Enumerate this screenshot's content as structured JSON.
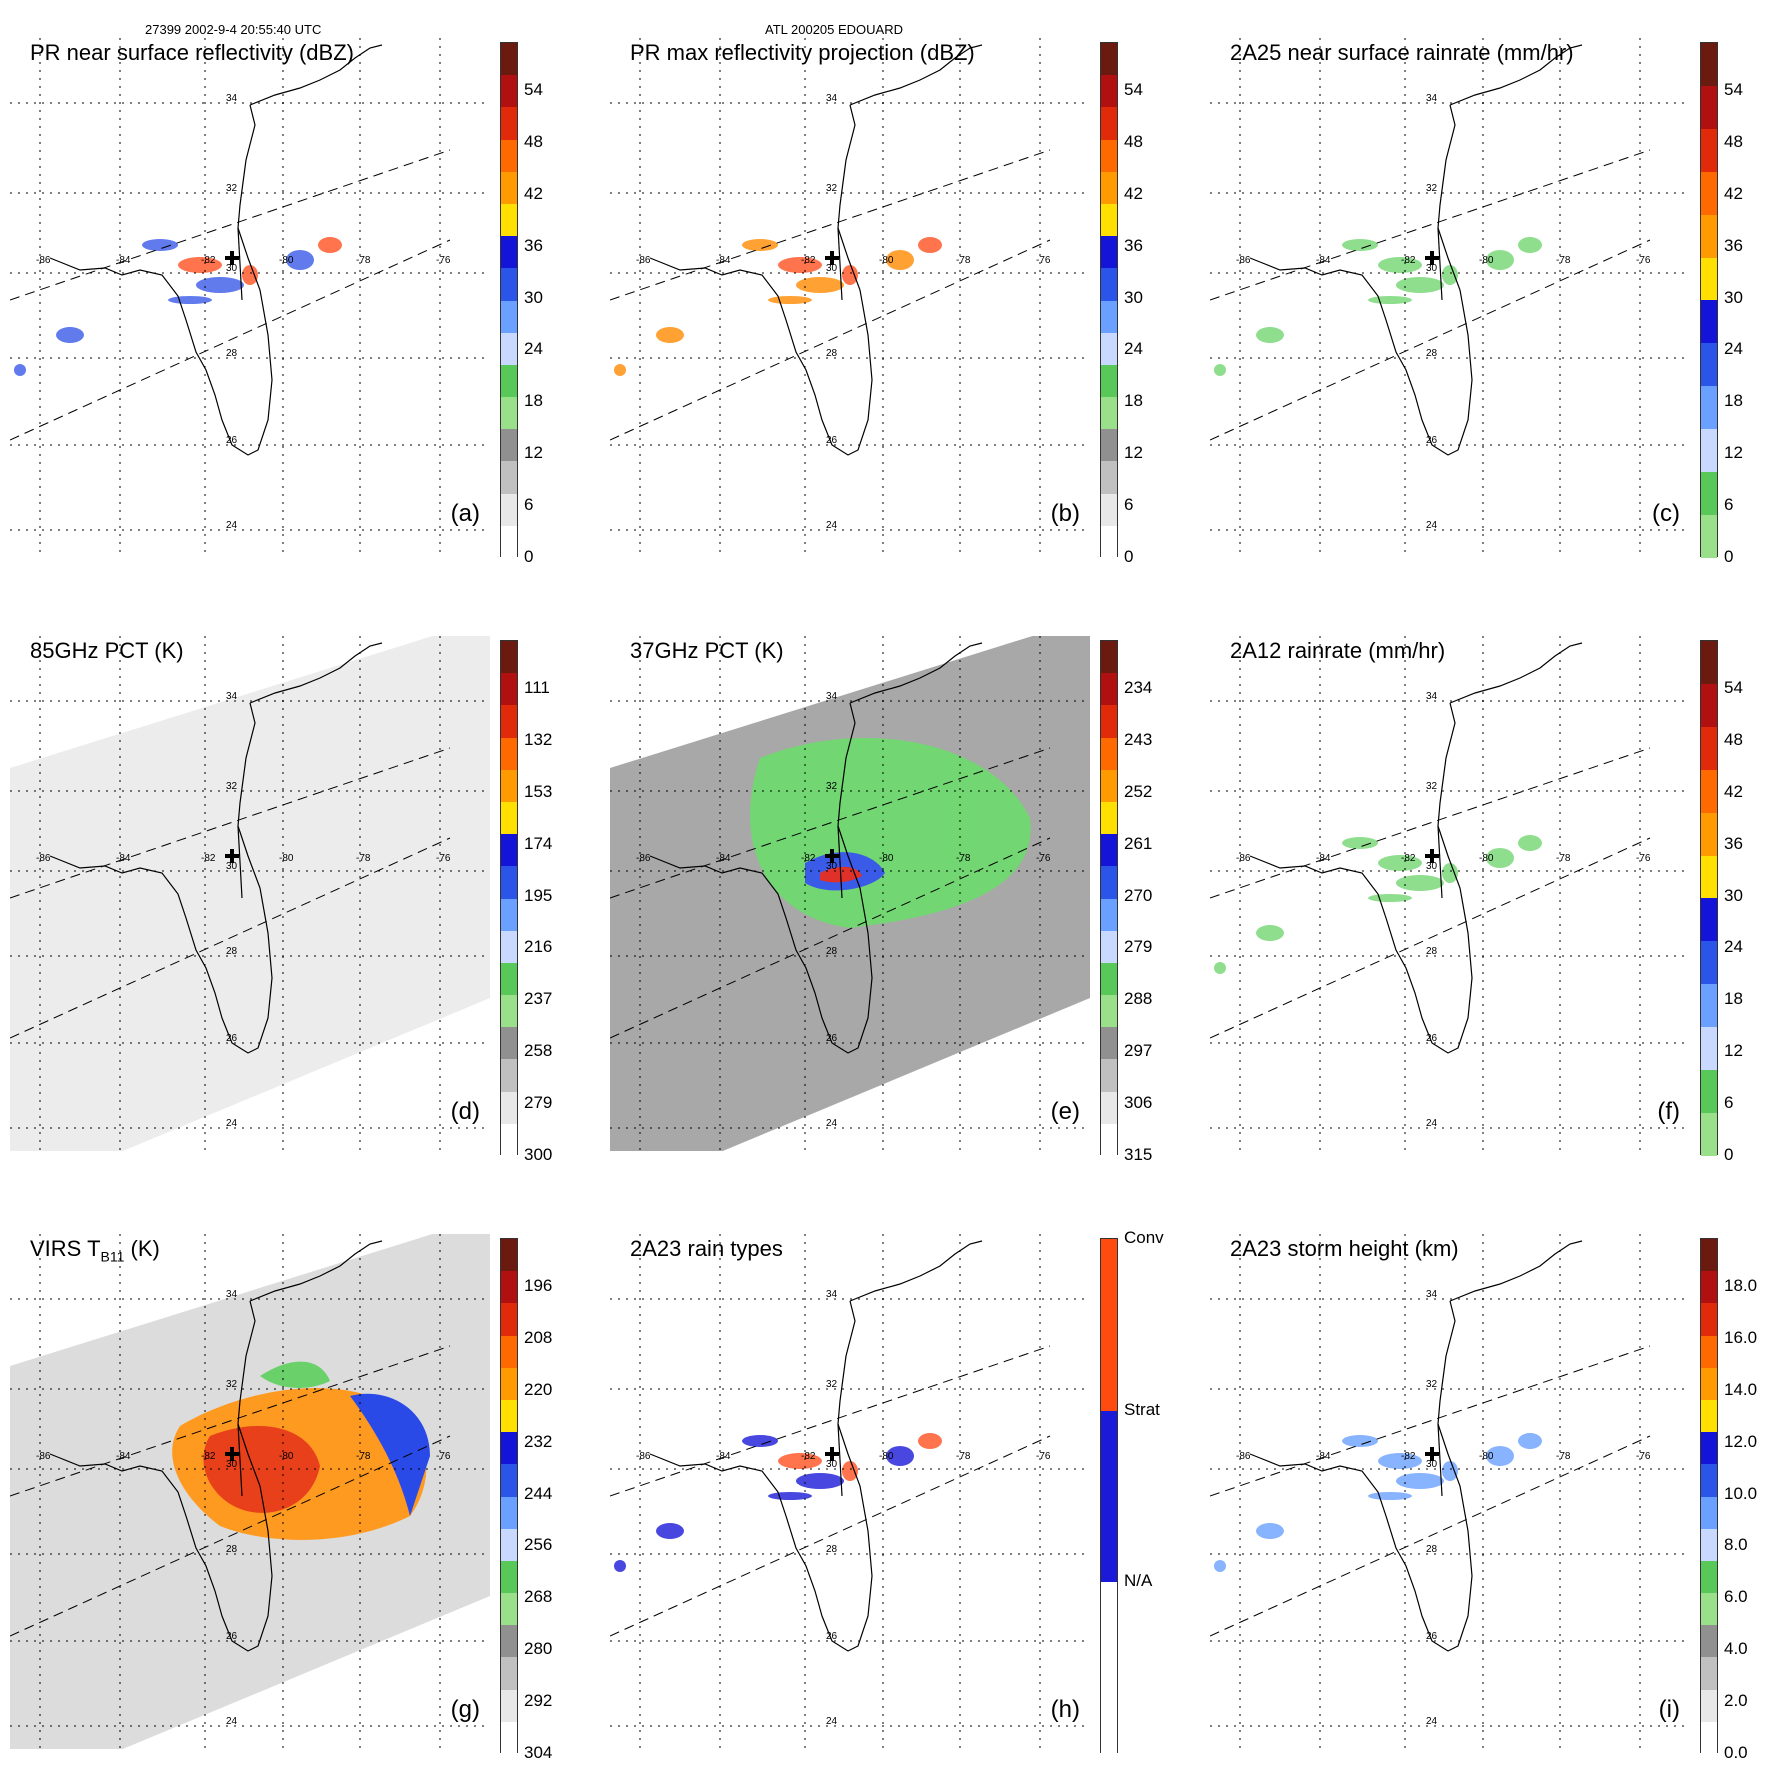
{
  "header": {
    "left": "27399 2002-9-4 20:55:40 UTC",
    "center": "ATL 200205 EDOUARD"
  },
  "lat_labels": [
    "34",
    "32",
    "30",
    "28",
    "26",
    "24"
  ],
  "lon_labels": [
    "-86",
    "-84",
    "-82",
    "-80",
    "-78",
    "-76"
  ],
  "panels": [
    {
      "id": "a",
      "title": "PR near surface reflectivity (dBZ)",
      "label": "(a)",
      "ticks": [
        "54",
        "48",
        "42",
        "36",
        "30",
        "24",
        "18",
        "12",
        "6",
        "0"
      ],
      "fill": "sparse",
      "palette": "dbz"
    },
    {
      "id": "b",
      "title": "PR max reflectivity projection (dBZ)",
      "label": "(b)",
      "ticks": [
        "54",
        "48",
        "42",
        "36",
        "30",
        "24",
        "18",
        "12",
        "6",
        "0"
      ],
      "fill": "sparse",
      "palette": "dbz"
    },
    {
      "id": "c",
      "title": "2A25 near surface rainrate (mm/hr)",
      "label": "(c)",
      "ticks": [
        "54",
        "48",
        "42",
        "36",
        "30",
        "24",
        "18",
        "12",
        "6",
        "0"
      ],
      "fill": "sparse",
      "palette": "rain"
    },
    {
      "id": "d",
      "title": "85GHz PCT (K)",
      "label": "(d)",
      "ticks": [
        "111",
        "132",
        "153",
        "174",
        "195",
        "216",
        "237",
        "258",
        "279",
        "300"
      ],
      "fill": "swath-light",
      "palette": "pct"
    },
    {
      "id": "e",
      "title": "37GHz PCT (K)",
      "label": "(e)",
      "ticks": [
        "234",
        "243",
        "252",
        "261",
        "270",
        "279",
        "288",
        "297",
        "306",
        "315"
      ],
      "fill": "swath-gray",
      "palette": "pct"
    },
    {
      "id": "f",
      "title": "2A12 rainrate (mm/hr)",
      "label": "(f)",
      "ticks": [
        "54",
        "48",
        "42",
        "36",
        "30",
        "24",
        "18",
        "12",
        "6",
        "0"
      ],
      "fill": "sparse",
      "palette": "rain"
    },
    {
      "id": "g",
      "title": "VIRS T",
      "title_sub": "B11",
      "title_tail": " (K)",
      "label": "(g)",
      "ticks": [
        "196",
        "208",
        "220",
        "232",
        "244",
        "256",
        "268",
        "280",
        "292",
        "304"
      ],
      "fill": "swath-virs",
      "palette": "pct"
    },
    {
      "id": "h",
      "title": "2A23 rain types",
      "label": "(h)",
      "ticks": [
        "Conv",
        "Strat",
        "N/A"
      ],
      "fill": "sparse",
      "palette": "type"
    },
    {
      "id": "i",
      "title": "2A23 storm height (km)",
      "label": "(i)",
      "ticks": [
        "18.0",
        "16.0",
        "14.0",
        "12.0",
        "10.0",
        "8.0",
        "6.0",
        "4.0",
        "2.0",
        "0.0"
      ],
      "fill": "sparse",
      "palette": "height"
    }
  ],
  "colors": {
    "dbz": [
      "#6b1a10",
      "#b01010",
      "#e02a0a",
      "#ff6a00",
      "#ff9a00",
      "#ffe000",
      "#1414d8",
      "#2b55e8",
      "#6aa0ff",
      "#c8d8ff",
      "#58c858",
      "#9ae08a",
      "#909090",
      "#c0c0c0",
      "#e8e8e8",
      "#ffffff"
    ],
    "rain": [
      "#6b1a10",
      "#b01010",
      "#e02a0a",
      "#ff6a00",
      "#ff9a00",
      "#ffe000",
      "#1414d8",
      "#2b55e8",
      "#6aa0ff",
      "#c8d8ff",
      "#58c858",
      "#9ae08a"
    ],
    "type": [
      "#ff4a10",
      "#1a1ad8",
      "#ffffff"
    ]
  }
}
